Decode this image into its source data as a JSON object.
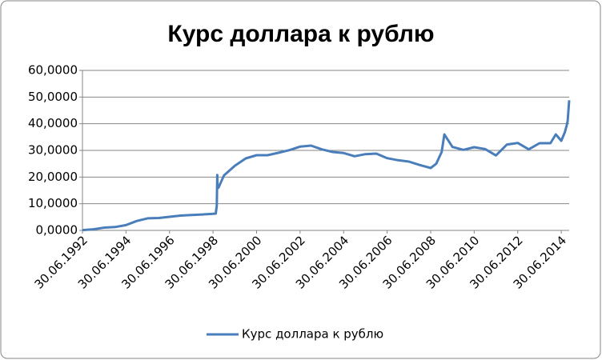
{
  "chart_data": {
    "type": "line",
    "title": "Курс доллара к рублю",
    "x": [
      "30.06.1992",
      "31.12.1992",
      "30.06.1993",
      "31.12.1993",
      "30.06.1994",
      "31.12.1994",
      "30.06.1995",
      "31.12.1995",
      "30.06.1996",
      "31.12.1996",
      "30.06.1997",
      "31.12.1997",
      "30.06.1998",
      "15.08.1998",
      "01.09.1998",
      "09.09.1998",
      "15.09.1998",
      "30.09.1998",
      "31.12.1998",
      "30.06.1999",
      "31.12.1999",
      "30.06.2000",
      "31.12.2000",
      "30.06.2001",
      "31.12.2001",
      "30.06.2002",
      "31.12.2002",
      "30.06.2003",
      "31.12.2003",
      "30.06.2004",
      "31.12.2004",
      "30.06.2005",
      "31.12.2005",
      "30.06.2006",
      "31.12.2006",
      "30.06.2007",
      "31.12.2007",
      "30.06.2008",
      "30.09.2008",
      "31.12.2008",
      "15.02.2009",
      "30.06.2009",
      "31.12.2009",
      "30.06.2010",
      "31.12.2010",
      "30.06.2011",
      "31.12.2011",
      "30.06.2012",
      "31.12.2012",
      "30.06.2013",
      "31.12.2013",
      "31.03.2014",
      "30.06.2014",
      "31.08.2014",
      "30.09.2014",
      "15.10.2014",
      "10.11.2014"
    ],
    "series": [
      {
        "name": "Курс доллара к рублю",
        "color": "#4a7ebb",
        "values": [
          0.13,
          0.41,
          1.06,
          1.25,
          1.99,
          3.55,
          4.54,
          4.64,
          5.11,
          5.56,
          5.78,
          5.96,
          6.2,
          6.3,
          9.3,
          20.8,
          16,
          16,
          20.65,
          24.2,
          27,
          28.2,
          28.2,
          29.1,
          30.1,
          31.4,
          31.8,
          30.4,
          29.4,
          29.0,
          27.8,
          28.6,
          28.8,
          27.1,
          26.3,
          25.8,
          24.5,
          23.4,
          25,
          29.4,
          36,
          31.3,
          30.2,
          31.2,
          30.5,
          28.1,
          32.2,
          32.8,
          30.4,
          32.7,
          32.7,
          36,
          33.6,
          36.9,
          39.4,
          41,
          48.8
        ]
      }
    ],
    "xlim": [
      "30.06.1992",
      "10.11.2014"
    ],
    "xticks": [
      "30.06.1992",
      "30.06.1994",
      "30.06.1996",
      "30.06.1998",
      "30.06.2000",
      "30.06.2002",
      "30.06.2004",
      "30.06.2006",
      "30.06.2008",
      "30.06.2010",
      "30.06.2012",
      "30.06.2014"
    ],
    "ylim": [
      0,
      60
    ],
    "yticks": [
      {
        "value": 0,
        "label": "0,0000"
      },
      {
        "value": 10,
        "label": "10,0000"
      },
      {
        "value": 20,
        "label": "20,0000"
      },
      {
        "value": 30,
        "label": "30,0000"
      },
      {
        "value": 40,
        "label": "40,0000"
      },
      {
        "value": 50,
        "label": "50,0000"
      },
      {
        "value": 60,
        "label": "60,0000"
      }
    ],
    "grid": true,
    "legend": "bottom"
  }
}
